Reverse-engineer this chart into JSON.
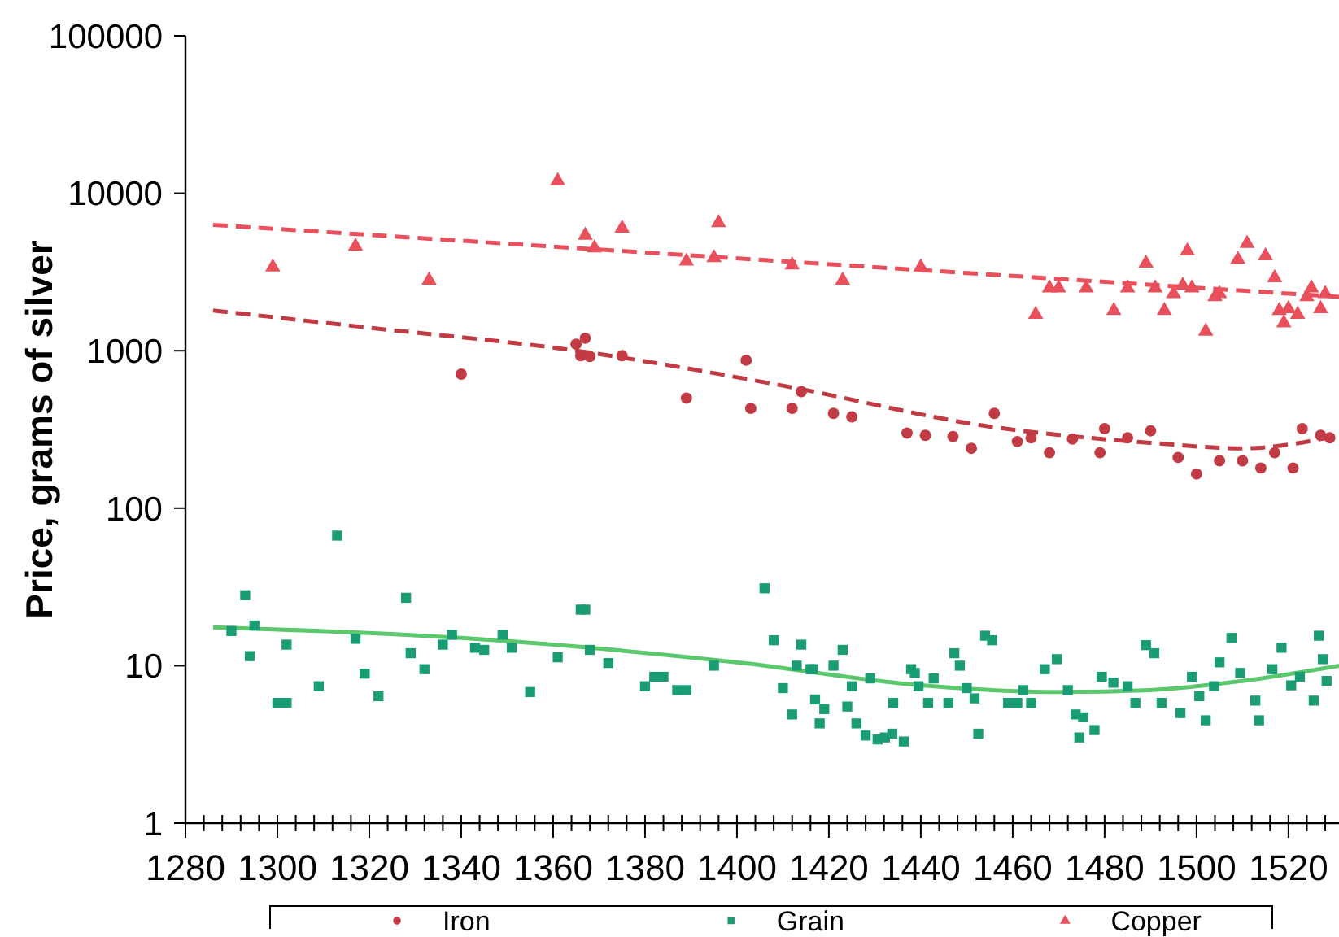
{
  "chart_data": {
    "type": "scatter",
    "ylabel": "Price, grams of silver",
    "log": "y",
    "grid": false,
    "legend": "bottom",
    "xlim": [
      1280,
      1531
    ],
    "ylim": [
      1,
      100000
    ],
    "yticks": [
      1,
      10,
      100,
      1000,
      10000,
      100000
    ],
    "xticks": [
      1280,
      {
        "value": 1284,
        "label": null
      },
      {
        "value": 1288,
        "label": null
      },
      {
        "value": 1292,
        "label": null
      },
      {
        "value": 1296,
        "label": null
      },
      1300,
      {
        "value": 1304,
        "label": null
      },
      {
        "value": 1308,
        "label": null
      },
      {
        "value": 1312,
        "label": null
      },
      {
        "value": 1316,
        "label": null
      },
      1320,
      {
        "value": 1324,
        "label": null
      },
      {
        "value": 1328,
        "label": null
      },
      {
        "value": 1332,
        "label": null
      },
      {
        "value": 1336,
        "label": null
      },
      1340,
      {
        "value": 1344,
        "label": null
      },
      {
        "value": 1348,
        "label": null
      },
      {
        "value": 1352,
        "label": null
      },
      {
        "value": 1356,
        "label": null
      },
      1360,
      {
        "value": 1364,
        "label": null
      },
      {
        "value": 1368,
        "label": null
      },
      {
        "value": 1372,
        "label": null
      },
      {
        "value": 1376,
        "label": null
      },
      1380,
      {
        "value": 1384,
        "label": null
      },
      {
        "value": 1388,
        "label": null
      },
      {
        "value": 1392,
        "label": null
      },
      {
        "value": 1396,
        "label": null
      },
      1400,
      {
        "value": 1404,
        "label": null
      },
      {
        "value": 1408,
        "label": null
      },
      {
        "value": 1412,
        "label": null
      },
      {
        "value": 1416,
        "label": null
      },
      1420,
      {
        "value": 1424,
        "label": null
      },
      {
        "value": 1428,
        "label": null
      },
      {
        "value": 1432,
        "label": null
      },
      {
        "value": 1436,
        "label": null
      },
      1440,
      {
        "value": 1444,
        "label": null
      },
      {
        "value": 1448,
        "label": null
      },
      {
        "value": 1452,
        "label": null
      },
      {
        "value": 1456,
        "label": null
      },
      1460,
      {
        "value": 1464,
        "label": null
      },
      {
        "value": 1468,
        "label": null
      },
      {
        "value": 1472,
        "label": null
      },
      {
        "value": 1476,
        "label": null
      },
      1480,
      {
        "value": 1484,
        "label": null
      },
      {
        "value": 1488,
        "label": null
      },
      {
        "value": 1492,
        "label": null
      },
      {
        "value": 1496,
        "label": null
      },
      1500,
      {
        "value": 1504,
        "label": null
      },
      {
        "value": 1508,
        "label": null
      },
      {
        "value": 1512,
        "label": null
      },
      {
        "value": 1516,
        "label": null
      },
      1520,
      {
        "value": 1524,
        "label": null
      },
      {
        "value": 1528,
        "label": null
      }
    ],
    "series": [
      {
        "name": "Iron",
        "marker": "circle",
        "color": "#c23a44",
        "x": [
          1340,
          1365,
          1367,
          1366,
          1368,
          1375,
          1389,
          1402,
          1403,
          1412,
          1414,
          1421,
          1425,
          1437,
          1441,
          1447,
          1451,
          1456,
          1461,
          1464,
          1468,
          1473,
          1479,
          1480,
          1485,
          1490,
          1496,
          1500,
          1505,
          1510,
          1514,
          1517,
          1521,
          1523,
          1527,
          1529
        ],
        "values": [
          710,
          1100,
          1200,
          930,
          920,
          930,
          500,
          870,
          430,
          430,
          550,
          400,
          380,
          300,
          290,
          285,
          240,
          400,
          265,
          280,
          225,
          275,
          225,
          320,
          280,
          310,
          210,
          165,
          200,
          200,
          180,
          225,
          180,
          320,
          290,
          280
        ]
      },
      {
        "name": "Grain",
        "marker": "square",
        "color": "#1a9c74",
        "x": [
          1290,
          1293,
          1295,
          1294,
          1300,
          1302,
          1302,
          1309,
          1313,
          1317,
          1319,
          1322,
          1328,
          1329,
          1332,
          1336,
          1338,
          1343,
          1345,
          1349,
          1351,
          1355,
          1361,
          1366,
          1367,
          1368,
          1372,
          1380,
          1382,
          1384,
          1387,
          1389,
          1395,
          1406,
          1408,
          1410,
          1412,
          1413,
          1414,
          1416,
          1416.5,
          1417,
          1418,
          1419,
          1421,
          1423,
          1424,
          1425,
          1426,
          1428,
          1429,
          1430.6,
          1432.2,
          1433.8,
          1434,
          1436.3,
          1437.9,
          1438.7,
          1439.5,
          1441.6,
          1442.8,
          1446,
          1447.3,
          1448.5,
          1450,
          1451.7,
          1452.5,
          1454,
          1455.5,
          1459,
          1461,
          1462.3,
          1464,
          1467,
          1469.6,
          1472,
          1473.7,
          1474.5,
          1475.3,
          1477.8,
          1479.4,
          1481.9,
          1485,
          1486.7,
          1489,
          1490.8,
          1492.4,
          1496.5,
          1499,
          1500.6,
          1502,
          1503.8,
          1505,
          1507.6,
          1509.5,
          1512.8,
          1513.6,
          1516.5,
          1518.5,
          1520.6,
          1522.5,
          1525.5,
          1526.6,
          1527.5,
          1528.3
        ],
        "values": [
          16.6,
          28,
          18,
          11.5,
          5.8,
          5.8,
          13.6,
          7.4,
          67,
          14.8,
          8.9,
          6.4,
          27,
          12,
          9.5,
          13.6,
          15.7,
          13,
          12.6,
          15.7,
          13,
          6.8,
          11.3,
          22.7,
          22.7,
          12.6,
          10.4,
          7.4,
          8.5,
          8.5,
          7,
          7,
          10,
          31,
          14.5,
          7.2,
          4.9,
          10,
          13.6,
          9.5,
          9.5,
          6.1,
          4.3,
          5.3,
          10,
          12.6,
          5.5,
          7.4,
          4.3,
          3.6,
          8.3,
          3.4,
          3.5,
          3.7,
          5.8,
          3.3,
          9.5,
          9,
          7.4,
          5.8,
          8.3,
          5.8,
          12,
          10,
          7.2,
          6.2,
          3.7,
          15.5,
          14.5,
          5.8,
          5.8,
          7,
          5.8,
          9.5,
          11,
          7,
          4.9,
          3.5,
          4.7,
          3.9,
          8.5,
          7.8,
          7.4,
          5.8,
          13.5,
          12,
          5.8,
          5,
          8.5,
          6.4,
          4.5,
          7.4,
          10.5,
          15,
          9,
          6,
          4.5,
          9.5,
          13,
          7.5,
          8.5,
          6,
          15.5,
          11,
          8
        ]
      },
      {
        "name": "Copper",
        "marker": "triangle",
        "color": "#ea4f5c",
        "x": [
          1299,
          1317,
          1333,
          1361,
          1367,
          1369,
          1375,
          1389,
          1395,
          1396,
          1412,
          1423,
          1440,
          1465,
          1468,
          1470,
          1476,
          1482,
          1485,
          1489,
          1491,
          1493,
          1495,
          1497,
          1498,
          1499,
          1502,
          1504,
          1505,
          1509,
          1511,
          1515,
          1517,
          1518,
          1519,
          1520,
          1522,
          1524,
          1525,
          1527,
          1528
        ],
        "values": [
          3400,
          4600,
          2800,
          12000,
          5400,
          4500,
          6000,
          3700,
          3900,
          6500,
          3500,
          2800,
          3400,
          1700,
          2500,
          2500,
          2500,
          1800,
          2500,
          3600,
          2500,
          1800,
          2300,
          2600,
          4300,
          2500,
          1330,
          2200,
          2300,
          3800,
          4800,
          4000,
          2900,
          1800,
          1500,
          1850,
          1700,
          2200,
          2500,
          1850,
          2300
        ]
      },
      {
        "type": "line",
        "marker": "none",
        "line_style": "dashed",
        "color": "#c23a44",
        "x": [
          1286,
          1320,
          1365,
          1410,
          1455,
          1490,
          1510,
          1531
        ],
        "values": [
          1800,
          1400,
          1000,
          600,
          330,
          260,
          240,
          290
        ]
      },
      {
        "type": "line",
        "marker": "none",
        "line_style": "dashed",
        "color": "#ea4f5c",
        "x": [
          1286,
          1531
        ],
        "values": [
          6300,
          2200
        ]
      },
      {
        "type": "line",
        "marker": "none",
        "line_style": "solid",
        "color": "#5cc86e",
        "x": [
          1286,
          1340,
          1400,
          1440,
          1470,
          1490,
          1510,
          1531
        ],
        "values": [
          17.5,
          15,
          10.5,
          7.5,
          6.8,
          7,
          8,
          10
        ]
      }
    ]
  }
}
